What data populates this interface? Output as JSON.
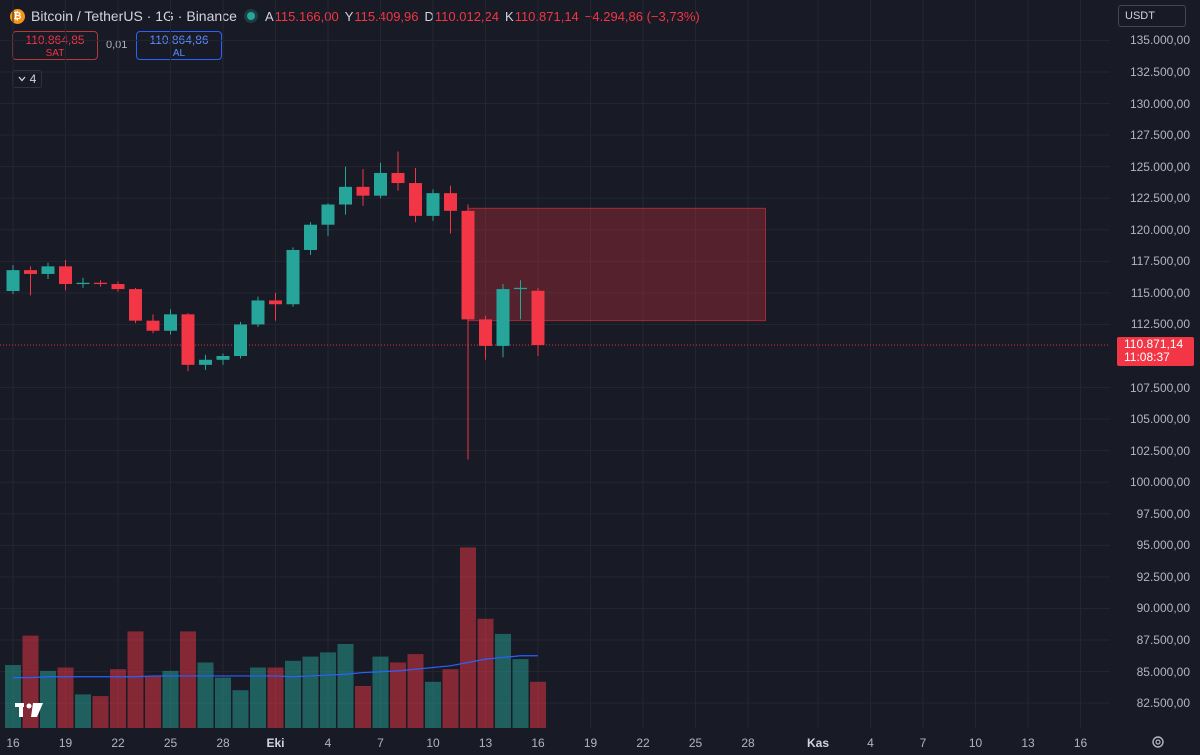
{
  "header": {
    "logo_letter": "₿",
    "title": "Bitcoin / TetherUS · 1G · Binance",
    "ohlc": [
      {
        "key": "A",
        "value": "115.166,00"
      },
      {
        "key": "Y",
        "value": "115.409,96"
      },
      {
        "key": "D",
        "value": "110.012,24"
      },
      {
        "key": "K",
        "value": "110.871,14"
      }
    ],
    "change": "−4.294,86 (−3,73%)"
  },
  "trade": {
    "sell_price": "110.864,85",
    "sell_label": "SAT",
    "spread": "0,01",
    "buy_price": "110.864,86",
    "buy_label": "AL"
  },
  "indicators_count": "4",
  "currency": "USDT",
  "current_price": {
    "price": "110.871,14",
    "countdown": "11:08:37"
  },
  "colors": {
    "up": "#26a69a",
    "down": "#f23645",
    "zone": "#f23645",
    "ma": "#2962ff",
    "background": "#181a25"
  },
  "chart_data": {
    "type": "candlestick",
    "price_ticks": [
      "135.000,00",
      "132.500,00",
      "130.000,00",
      "127.500,00",
      "125.000,00",
      "122.500,00",
      "120.000,00",
      "117.500,00",
      "115.000,00",
      "112.500,00",
      "107.500,00",
      "105.000,00",
      "102.500,00",
      "100.000,00",
      "97.500,00",
      "95.000,00",
      "92.500,00",
      "90.000,00",
      "87.500,00",
      "85.000,00",
      "82.500,00"
    ],
    "x_ticks": [
      "16",
      "19",
      "22",
      "25",
      "28",
      "Eki",
      "4",
      "7",
      "10",
      "13",
      "16",
      "19",
      "22",
      "25",
      "28",
      "Kas",
      "4",
      "7",
      "10",
      "13",
      "16"
    ],
    "x_tick_dates": [
      "2025-09-16",
      "2025-09-19",
      "2025-09-22",
      "2025-09-25",
      "2025-09-28",
      "2025-10-01",
      "2025-10-04",
      "2025-10-07",
      "2025-10-10",
      "2025-10-13",
      "2025-10-16",
      "2025-10-19",
      "2025-10-22",
      "2025-10-25",
      "2025-10-28",
      "2025-11-01",
      "2025-11-04",
      "2025-11-07",
      "2025-11-10",
      "2025-11-13",
      "2025-11-16"
    ],
    "candles": [
      {
        "date": "2025-09-16",
        "o": 115150,
        "h": 117200,
        "l": 114900,
        "c": 116800,
        "v": 75
      },
      {
        "date": "2025-09-17",
        "o": 116800,
        "h": 117100,
        "l": 114800,
        "c": 116500,
        "v": 110
      },
      {
        "date": "2025-09-18",
        "o": 116500,
        "h": 117400,
        "l": 116100,
        "c": 117100,
        "v": 68
      },
      {
        "date": "2025-09-19",
        "o": 117100,
        "h": 117600,
        "l": 115200,
        "c": 115700,
        "v": 72
      },
      {
        "date": "2025-09-20",
        "o": 115700,
        "h": 116200,
        "l": 115400,
        "c": 115800,
        "v": 40
      },
      {
        "date": "2025-09-21",
        "o": 115800,
        "h": 116000,
        "l": 115500,
        "c": 115700,
        "v": 38
      },
      {
        "date": "2025-09-22",
        "o": 115700,
        "h": 115900,
        "l": 115100,
        "c": 115300,
        "v": 70
      },
      {
        "date": "2025-09-23",
        "o": 115300,
        "h": 115400,
        "l": 112600,
        "c": 112800,
        "v": 115
      },
      {
        "date": "2025-09-24",
        "o": 112800,
        "h": 113300,
        "l": 111800,
        "c": 112000,
        "v": 62
      },
      {
        "date": "2025-09-25",
        "o": 112000,
        "h": 113700,
        "l": 111700,
        "c": 113300,
        "v": 68
      },
      {
        "date": "2025-09-26",
        "o": 113300,
        "h": 113400,
        "l": 108800,
        "c": 109300,
        "v": 115
      },
      {
        "date": "2025-09-27",
        "o": 109300,
        "h": 110100,
        "l": 108900,
        "c": 109700,
        "v": 78
      },
      {
        "date": "2025-09-28",
        "o": 109700,
        "h": 110200,
        "l": 109300,
        "c": 110000,
        "v": 60
      },
      {
        "date": "2025-09-29",
        "o": 110000,
        "h": 112700,
        "l": 109800,
        "c": 112500,
        "v": 45
      },
      {
        "date": "2025-09-30",
        "o": 112500,
        "h": 114700,
        "l": 112300,
        "c": 114400,
        "v": 72
      },
      {
        "date": "2025-10-01",
        "o": 114400,
        "h": 115000,
        "l": 112800,
        "c": 114100,
        "v": 72
      },
      {
        "date": "2025-10-02",
        "o": 114100,
        "h": 118600,
        "l": 113900,
        "c": 118400,
        "v": 80
      },
      {
        "date": "2025-10-03",
        "o": 118400,
        "h": 120600,
        "l": 118000,
        "c": 120400,
        "v": 85
      },
      {
        "date": "2025-10-04",
        "o": 120400,
        "h": 122100,
        "l": 119500,
        "c": 122000,
        "v": 90
      },
      {
        "date": "2025-10-05",
        "o": 122000,
        "h": 125000,
        "l": 121200,
        "c": 123400,
        "v": 100
      },
      {
        "date": "2025-10-06",
        "o": 123400,
        "h": 124800,
        "l": 121900,
        "c": 122700,
        "v": 50
      },
      {
        "date": "2025-10-07",
        "o": 122700,
        "h": 125300,
        "l": 122500,
        "c": 124500,
        "v": 85
      },
      {
        "date": "2025-10-08",
        "o": 124500,
        "h": 126200,
        "l": 123100,
        "c": 123700,
        "v": 78
      },
      {
        "date": "2025-10-09",
        "o": 123700,
        "h": 124900,
        "l": 120600,
        "c": 121100,
        "v": 88
      },
      {
        "date": "2025-10-10",
        "o": 121100,
        "h": 123200,
        "l": 120700,
        "c": 122900,
        "v": 55
      },
      {
        "date": "2025-10-11",
        "o": 122900,
        "h": 123500,
        "l": 119700,
        "c": 121500,
        "v": 70
      },
      {
        "date": "2025-10-12",
        "o": 121500,
        "h": 122000,
        "l": 101800,
        "c": 112900,
        "v": 215
      },
      {
        "date": "2025-10-13",
        "o": 112900,
        "h": 113200,
        "l": 109700,
        "c": 110800,
        "v": 130
      },
      {
        "date": "2025-10-14",
        "o": 110800,
        "h": 115700,
        "l": 109900,
        "c": 115300,
        "v": 112
      },
      {
        "date": "2025-10-15",
        "o": 115300,
        "h": 116000,
        "l": 112900,
        "c": 115400,
        "v": 82
      },
      {
        "date": "2025-10-16",
        "o": 115166,
        "h": 115410,
        "l": 110012,
        "c": 110871,
        "v": 55
      }
    ],
    "volume_ma": [
      60,
      60,
      61,
      61,
      61,
      61,
      61,
      61,
      62,
      62,
      62,
      62,
      62,
      62,
      62,
      62,
      61,
      62,
      63,
      64,
      66,
      67,
      68,
      70,
      72,
      74,
      78,
      82,
      84,
      86,
      86
    ],
    "zone": {
      "type": "rectangle",
      "from_date": "2025-10-12",
      "to_date": "2025-10-29",
      "price_top": 121700,
      "price_bottom": 112800
    },
    "ylim": [
      81000,
      137000
    ]
  }
}
